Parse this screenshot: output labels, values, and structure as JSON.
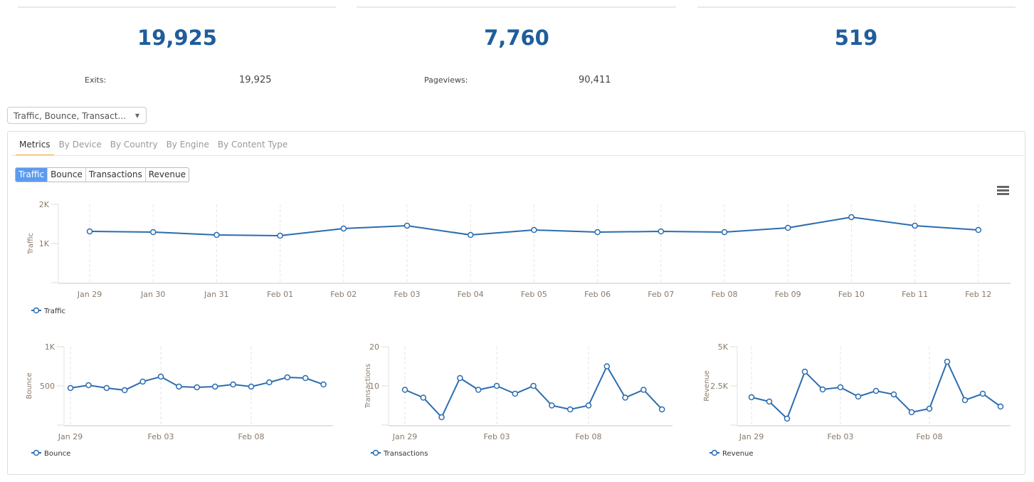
{
  "cards": [
    {
      "value": "19,925",
      "label": "Exits:",
      "sub_value": "19,925"
    },
    {
      "value": "7,760",
      "label": "Pageviews:",
      "sub_value": "90,411"
    },
    {
      "value": "519"
    }
  ],
  "filter": {
    "selected": "Traffic, Bounce, Transact..."
  },
  "tabs": [
    "Metrics",
    "By Device",
    "By Country",
    "By Engine",
    "By Content Type"
  ],
  "metric_buttons": [
    "Traffic",
    "Bounce",
    "Transactions",
    "Revenue"
  ],
  "colors": {
    "line": "#2b6cb0",
    "accent": "#1f5d9c",
    "active_button": "#5b9bf0",
    "tab_underline": "#f0ad4e"
  },
  "chart_data": [
    {
      "type": "line",
      "ylabel": "Traffic",
      "legend": "Traffic",
      "ylim": [
        0,
        2000
      ],
      "yticks": [
        "",
        "1K",
        "2K"
      ],
      "categories": [
        "Jan 29",
        "Jan 30",
        "Jan 31",
        "Feb 01",
        "Feb 02",
        "Feb 03",
        "Feb 04",
        "Feb 05",
        "Feb 06",
        "Feb 07",
        "Feb 08",
        "Feb 09",
        "Feb 10",
        "Feb 11",
        "Feb 12"
      ],
      "xticks": [
        "Jan 29",
        "Jan 30",
        "Jan 31",
        "Feb 01",
        "Feb 02",
        "Feb 03",
        "Feb 04",
        "Feb 05",
        "Feb 06",
        "Feb 07",
        "Feb 08",
        "Feb 09",
        "Feb 10",
        "Feb 11",
        "Feb 12"
      ],
      "values": [
        1309,
        1291,
        1218,
        1200,
        1382,
        1455,
        1218,
        1345,
        1291,
        1309,
        1291,
        1400,
        1673,
        1455,
        1345
      ]
    },
    {
      "type": "line",
      "ylabel": "Bounce",
      "legend": "Bounce",
      "ylim": [
        0,
        1000
      ],
      "yticks": [
        "",
        "500",
        "1K"
      ],
      "xticks": [
        "Jan 29",
        "Feb 03",
        "Feb 08"
      ],
      "values": [
        473,
        509,
        473,
        445,
        555,
        618,
        491,
        482,
        491,
        518,
        491,
        545,
        609,
        600,
        518
      ]
    },
    {
      "type": "line",
      "ylabel": "Transactions",
      "legend": "Transactions",
      "ylim": [
        0,
        20
      ],
      "yticks": [
        "",
        "10",
        "20"
      ],
      "xticks": [
        "Jan 29",
        "Feb 03",
        "Feb 08"
      ],
      "values": [
        9,
        7,
        2,
        12,
        9,
        10,
        8,
        10,
        5,
        4,
        5,
        15,
        7,
        9,
        4
      ]
    },
    {
      "type": "line",
      "ylabel": "Revenue",
      "legend": "Revenue",
      "ylim": [
        0,
        5000
      ],
      "yticks": [
        "",
        "2.5K",
        "5K"
      ],
      "xticks": [
        "Jan 29",
        "Feb 03",
        "Feb 08"
      ],
      "values": [
        1773,
        1500,
        409,
        3409,
        2273,
        2409,
        1818,
        2182,
        1955,
        818,
        1045,
        4045,
        1591,
        2000,
        1182
      ]
    }
  ]
}
